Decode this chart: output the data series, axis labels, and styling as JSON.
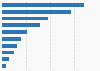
{
  "values": [
    85,
    72,
    48,
    40,
    26,
    20,
    16,
    12,
    7,
    4
  ],
  "bar_color": "#2e75b6",
  "background_color": "#f9f9f9",
  "bar_height": 0.55,
  "grid_color": "#d9d9d9",
  "grid_linestyle": "--",
  "xlim": [
    0,
    100
  ],
  "n_bars": 10
}
